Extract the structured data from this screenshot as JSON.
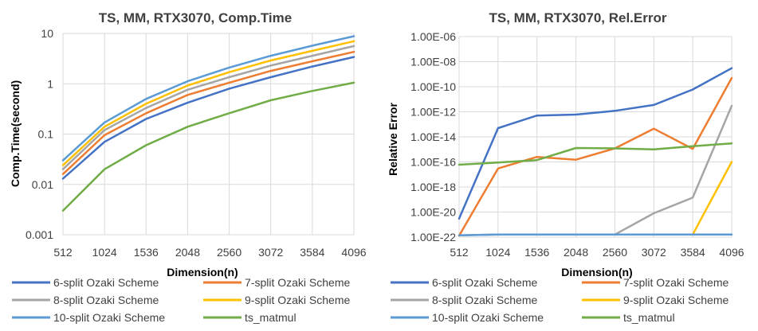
{
  "series_styles": [
    {
      "name": "6-split Ozaki Scheme",
      "color": "#4472c4"
    },
    {
      "name": "7-split Ozaki Scheme",
      "color": "#ed7d31"
    },
    {
      "name": "8-split Ozaki Scheme",
      "color": "#a5a5a5"
    },
    {
      "name": "9-split Ozaki Scheme",
      "color": "#ffc000"
    },
    {
      "name": "10-split Ozaki Scheme",
      "color": "#5b9bd5"
    },
    {
      "name": "ts_matmul",
      "color": "#70ad47"
    }
  ],
  "chart_data": [
    {
      "type": "line",
      "title": "TS, MM, RTX3070, Comp.Time",
      "xlabel": "Dimension(n)",
      "ylabel": "Comp.Time(second)",
      "yscale": "log",
      "ylim": [
        0.001,
        10
      ],
      "yticks": [
        "10",
        "1",
        "0.1",
        "0.01",
        "0.001"
      ],
      "categories": [
        "512",
        "1024",
        "1536",
        "2048",
        "2560",
        "3072",
        "3584",
        "4096"
      ],
      "grid": true,
      "legend": "bottom",
      "series": [
        {
          "name": "6-split Ozaki Scheme",
          "values": [
            0.013,
            0.07,
            0.2,
            0.42,
            0.8,
            1.35,
            2.2,
            3.4
          ]
        },
        {
          "name": "7-split Ozaki Scheme",
          "values": [
            0.016,
            0.095,
            0.26,
            0.6,
            1.05,
            1.8,
            2.8,
            4.3
          ]
        },
        {
          "name": "8-split Ozaki Scheme",
          "values": [
            0.02,
            0.12,
            0.33,
            0.76,
            1.35,
            2.3,
            3.6,
            5.6
          ]
        },
        {
          "name": "9-split Ozaki Scheme",
          "values": [
            0.024,
            0.14,
            0.4,
            0.92,
            1.7,
            2.9,
            4.5,
            7.0
          ]
        },
        {
          "name": "10-split Ozaki Scheme",
          "values": [
            0.03,
            0.17,
            0.5,
            1.12,
            2.1,
            3.6,
            5.7,
            8.8
          ]
        },
        {
          "name": "ts_matmul",
          "values": [
            0.003,
            0.02,
            0.06,
            0.14,
            0.26,
            0.47,
            0.72,
            1.05
          ]
        }
      ]
    },
    {
      "type": "line",
      "title": "TS, MM, RTX3070, Rel.Error",
      "xlabel": "Dimension(n)",
      "ylabel": "Relative Error",
      "yscale": "log",
      "ylim": [
        1e-22,
        1e-06
      ],
      "yticks": [
        "1.00E-06",
        "1.00E-08",
        "1.00E-10",
        "1.00E-12",
        "1.00E-14",
        "1.00E-16",
        "1.00E-18",
        "1.00E-20",
        "1.00E-22"
      ],
      "categories": [
        "512",
        "1024",
        "1536",
        "2048",
        "2560",
        "3072",
        "3584",
        "4096"
      ],
      "grid": true,
      "legend": "bottom",
      "series": [
        {
          "name": "6-split Ozaki Scheme",
          "values": [
            3e-21,
            5e-14,
            5e-13,
            6e-13,
            1.2e-12,
            3.5e-12,
            6e-11,
            3e-09
          ]
        },
        {
          "name": "7-split Ozaki Scheme",
          "values": [
            1.3e-22,
            3e-17,
            2.5e-16,
            1.5e-16,
            1.2e-15,
            4.5e-14,
            1.1e-15,
            5e-10
          ]
        },
        {
          "name": "8-split Ozaki Scheme",
          "values": [
            1.4e-22,
            1.6e-22,
            1.6e-22,
            1.6e-22,
            1.6e-22,
            8e-21,
            1.4e-19,
            3e-12
          ]
        },
        {
          "name": "9-split Ozaki Scheme",
          "values": [
            null,
            null,
            null,
            null,
            null,
            null,
            1.6e-22,
            1e-16
          ]
        },
        {
          "name": "10-split Ozaki Scheme",
          "values": [
            1.4e-22,
            1.6e-22,
            1.6e-22,
            1.6e-22,
            1.6e-22,
            1.6e-22,
            1.6e-22,
            1.6e-22
          ]
        },
        {
          "name": "ts_matmul",
          "values": [
            6e-17,
            9e-17,
            1.4e-16,
            1.3e-15,
            1.2e-15,
            1e-15,
            1.8e-15,
            3e-15
          ]
        }
      ]
    }
  ]
}
